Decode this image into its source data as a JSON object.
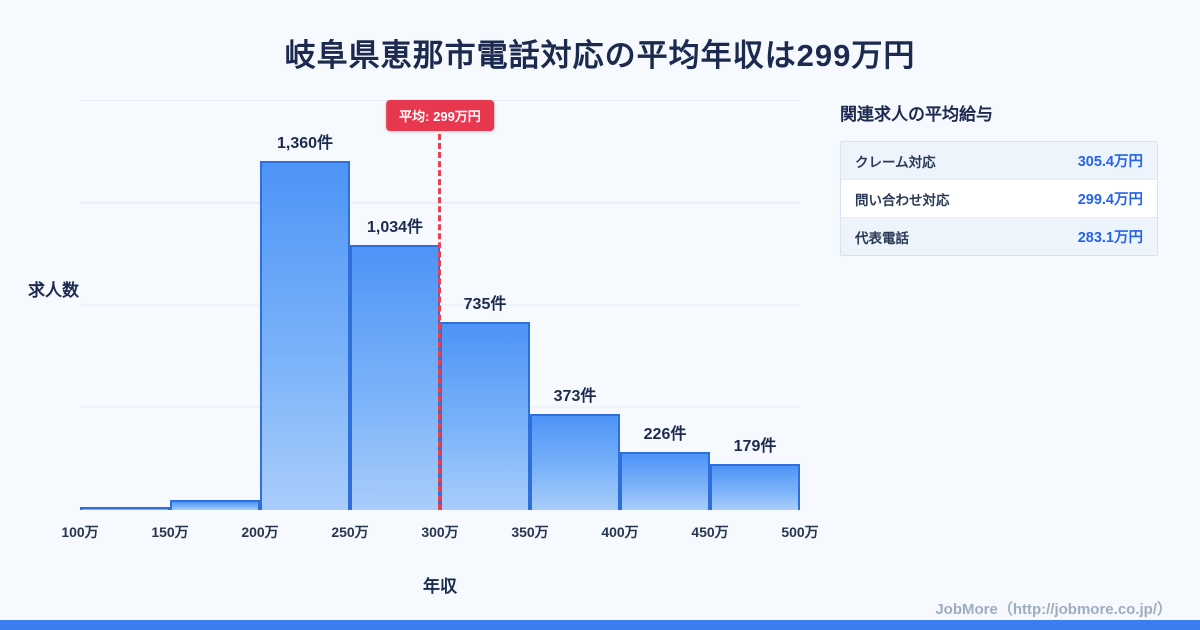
{
  "page": {
    "title": "岐阜県恵那市電話対応の平均年収は299万円",
    "footer": "JobMore（http://jobmore.co.jp/）"
  },
  "chart_data": {
    "type": "bar",
    "title": "岐阜県恵那市電話対応の平均年収は299万円",
    "xlabel": "年収",
    "ylabel": "求人数",
    "x_ticks": [
      "100万",
      "150万",
      "200万",
      "250万",
      "300万",
      "350万",
      "400万",
      "450万",
      "500万"
    ],
    "bins": [
      {
        "range": "100万-150万",
        "value": 10,
        "label": ""
      },
      {
        "range": "150万-200万",
        "value": 40,
        "label": ""
      },
      {
        "range": "200万-250万",
        "value": 1360,
        "label": "1,360件"
      },
      {
        "range": "250万-300万",
        "value": 1034,
        "label": "1,034件"
      },
      {
        "range": "300万-350万",
        "value": 735,
        "label": "735件"
      },
      {
        "range": "350万-400万",
        "value": 373,
        "label": "373件"
      },
      {
        "range": "400万-450万",
        "value": 226,
        "label": "226件"
      },
      {
        "range": "450万-500万",
        "value": 179,
        "label": "179件"
      }
    ],
    "ylim": [
      0,
      1600
    ],
    "grid": true,
    "legend": false,
    "average_line": {
      "x": "300万",
      "label": "平均: 299万円"
    }
  },
  "side_panel": {
    "heading": "関連求人の平均給与",
    "rows": [
      {
        "label": "クレーム対応",
        "value": "305.4万円"
      },
      {
        "label": "問い合わせ対応",
        "value": "299.4万円"
      },
      {
        "label": "代表電話",
        "value": "283.1万円"
      }
    ]
  },
  "colors": {
    "background": "#f6f9fd",
    "title_text": "#1b2a4e",
    "bar_top": "#4d94f7",
    "bar_bottom": "#a9cdfb",
    "bar_border": "#2f6fdb",
    "average_line": "#e8384f",
    "salary_value_text": "#2563eb",
    "bottom_accent": "#3c7ef0",
    "footer_text": "#9eadc0"
  }
}
